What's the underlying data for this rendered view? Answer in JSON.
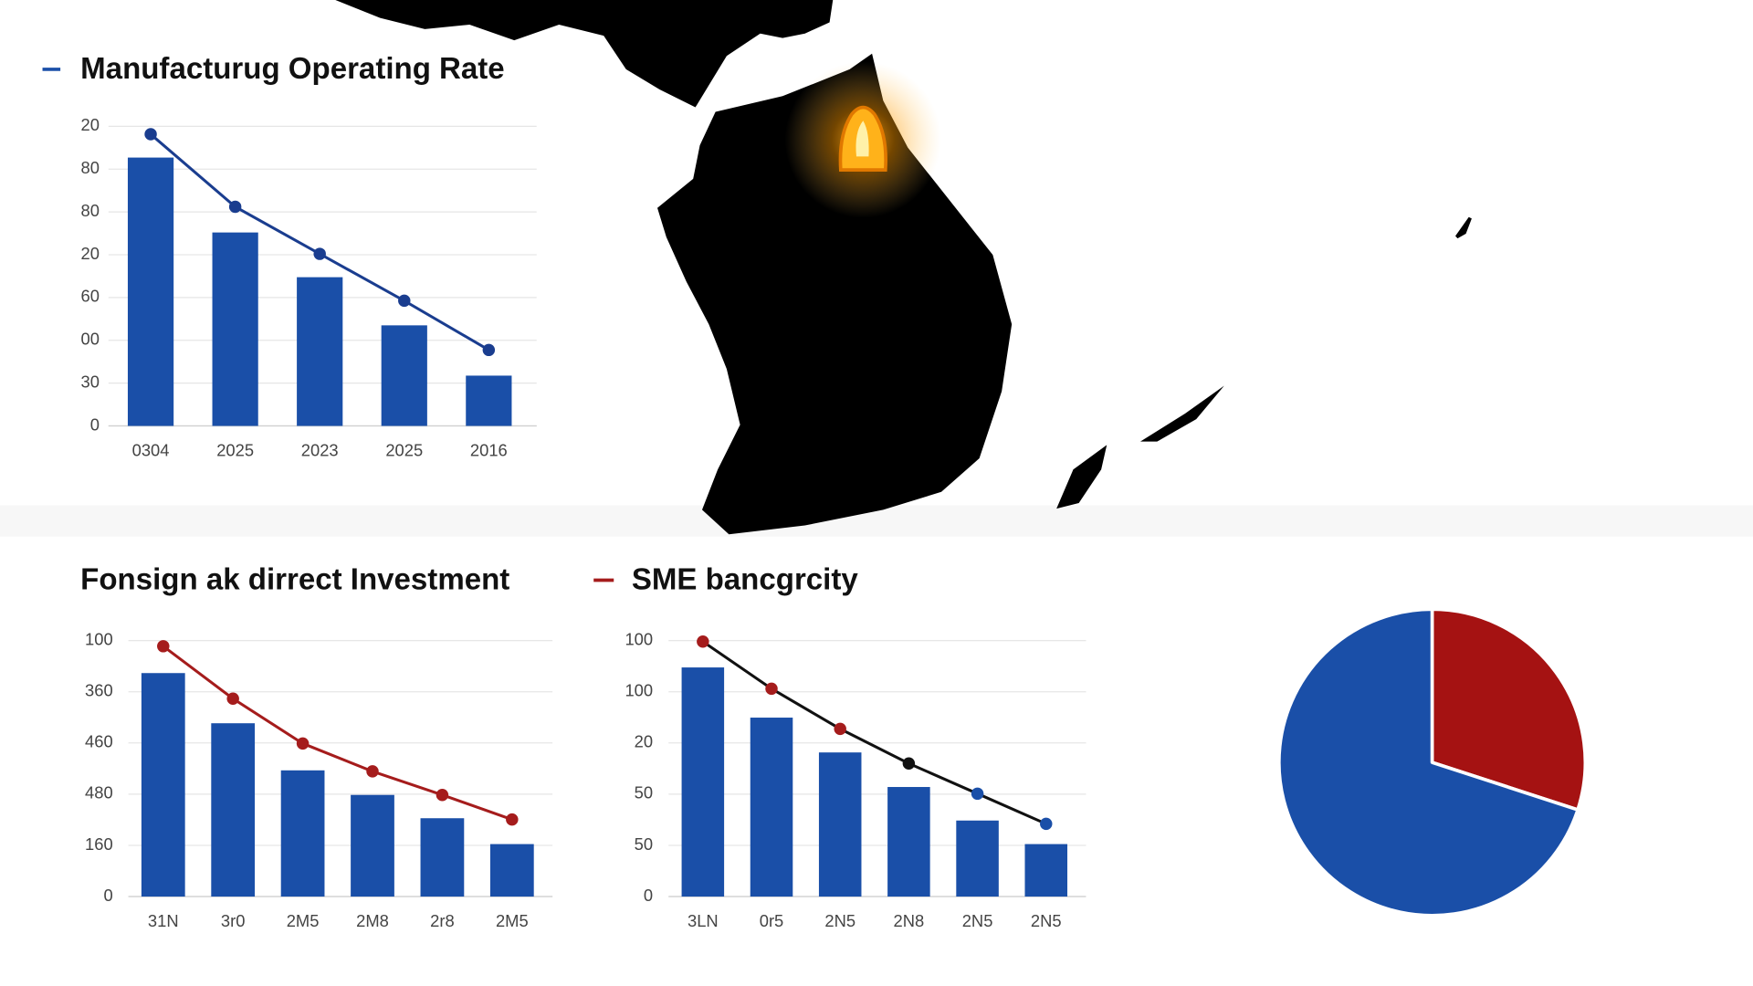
{
  "chart_data": [
    {
      "type": "bar",
      "title": "Manufacturug Operating Rate",
      "categories": [
        "0304",
        "2025",
        "2023",
        "2025",
        "2016"
      ],
      "series": [
        {
          "type": "bar",
          "color": "#1a4fa8",
          "values": [
            125.4,
            90.4,
            69.5,
            47,
            23.5
          ]
        },
        {
          "type": "line",
          "color": "#1a3d8f",
          "values": [
            136.3,
            102.4,
            80.4,
            58.5,
            35.5
          ],
          "point_colors": [
            "#1a3d8f",
            "#1a3d8f",
            "#1a3d8f",
            "#1a3d8f",
            "#1a3d8f"
          ]
        }
      ],
      "ylim": [
        0,
        140
      ],
      "yticks": [
        0,
        {
          "value": 20,
          "label": "30"
        },
        {
          "value": 40,
          "label": "00"
        },
        {
          "value": 60,
          "label": "60"
        },
        {
          "value": 80,
          "label": "20"
        },
        {
          "value": 100,
          "label": "80"
        },
        {
          "value": 120,
          "label": "80"
        },
        {
          "value": 140,
          "label": "20"
        }
      ],
      "grid": true
    },
    {
      "type": "bar",
      "title": "Fonsign ak dirrect Investment",
      "categories": [
        "31N",
        "3r0",
        "2M5",
        "2M8",
        "2r8",
        "2M5"
      ],
      "series": [
        {
          "type": "bar",
          "color": "#1a4fa8",
          "values": [
            87.3,
            67.7,
            49.3,
            39.7,
            30.6,
            20.5
          ]
        },
        {
          "type": "line",
          "color": "#a51c1c",
          "values": [
            97.8,
            77.3,
            59.8,
            48.9,
            39.7,
            30.1
          ],
          "point_colors": [
            "#a51c1c",
            "#a51c1c",
            "#a51c1c",
            "#a51c1c",
            "#a51c1c",
            "#a51c1c"
          ]
        }
      ],
      "ylim": [
        0,
        100
      ],
      "yticks": [
        0,
        {
          "value": 20,
          "label": "160"
        },
        {
          "value": 40,
          "label": "480"
        },
        {
          "value": 60,
          "label": "460"
        },
        {
          "value": 80,
          "label": "360"
        },
        100
      ],
      "grid": true
    },
    {
      "type": "bar",
      "title": "SME bancgrcity",
      "categories": [
        "3LN",
        "0r5",
        "2N5",
        "2N8",
        "2N5",
        "2N5"
      ],
      "series": [
        {
          "type": "bar",
          "color": "#1a4fa8",
          "values": [
            89.5,
            69.9,
            56.3,
            42.8,
            29.7,
            20.5
          ]
        },
        {
          "type": "line",
          "color": "#111111",
          "values": [
            99.6,
            81.2,
            65.5,
            52.0,
            40.2,
            28.4
          ],
          "point_colors": [
            "#a51c1c",
            "#a51c1c",
            "#a51c1c",
            "#111111",
            "#1a4fa8",
            "#1a4fa8"
          ]
        }
      ],
      "ylim": [
        0,
        100
      ],
      "yticks": [
        0,
        {
          "value": 20,
          "label": "50"
        },
        {
          "value": 40,
          "label": "50"
        },
        {
          "value": 60,
          "label": "20"
        },
        {
          "value": 80,
          "label": "100"
        },
        100
      ],
      "grid": true
    },
    {
      "type": "pie",
      "values": [
        30,
        70
      ],
      "colors": [
        "#a51212",
        "#1a4fa8"
      ]
    }
  ]
}
